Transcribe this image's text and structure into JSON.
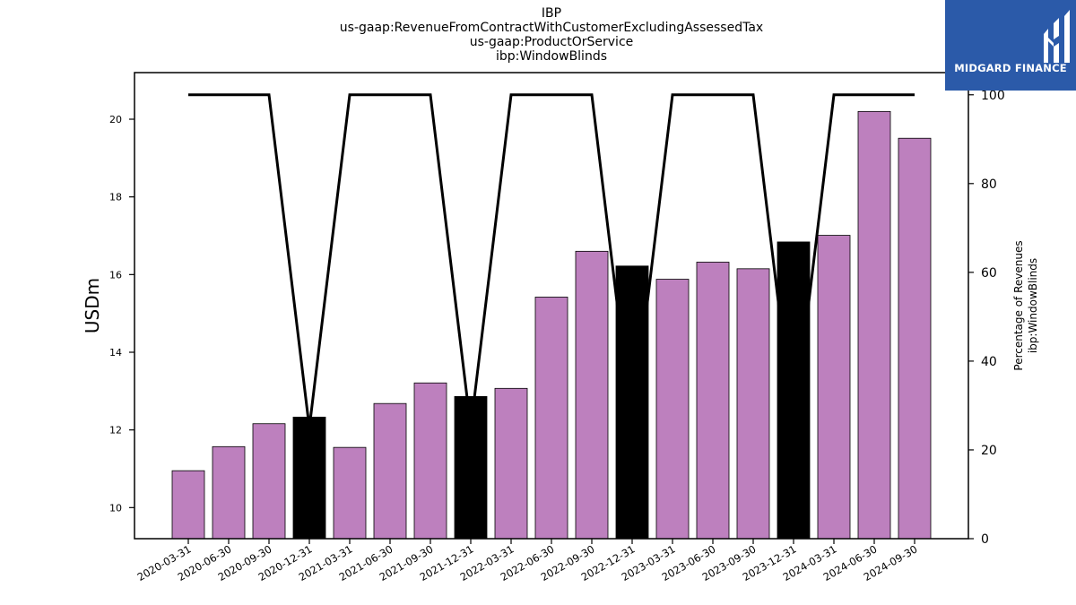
{
  "chart_data": {
    "type": "bar",
    "title": [
      "IBP",
      "us-gaap:RevenueFromContractWithCustomerExcludingAssessedTax",
      "us-gaap:ProductOrService",
      "ibp:WindowBlinds"
    ],
    "ylabel": "USDm",
    "ylabel_right": [
      "Percentage of Revenues",
      "ibp:WindowBlinds"
    ],
    "categories": [
      "2020-03-31",
      "2020-06-30",
      "2020-09-30",
      "2020-12-31",
      "2021-03-31",
      "2021-06-30",
      "2021-09-30",
      "2021-12-31",
      "2022-03-31",
      "2022-06-30",
      "2022-09-30",
      "2022-12-31",
      "2023-03-31",
      "2023-06-30",
      "2023-09-30",
      "2023-12-31",
      "2024-03-31",
      "2024-06-30",
      "2024-09-30"
    ],
    "series": [
      {
        "type": "bar",
        "axis": "left",
        "values": [
          10.95,
          11.57,
          12.16,
          12.33,
          11.55,
          12.68,
          13.21,
          12.86,
          13.07,
          15.42,
          16.6,
          16.22,
          15.88,
          16.32,
          16.15,
          16.84,
          17.01,
          20.2,
          19.51
        ],
        "colors": [
          "#bd80be",
          "#bd80be",
          "#bd80be",
          "#000000",
          "#bd80be",
          "#bd80be",
          "#bd80be",
          "#000000",
          "#bd80be",
          "#bd80be",
          "#bd80be",
          "#000000",
          "#bd80be",
          "#bd80be",
          "#bd80be",
          "#000000",
          "#bd80be",
          "#bd80be",
          "#bd80be"
        ]
      },
      {
        "type": "line",
        "axis": "right",
        "color": "#000000",
        "values": [
          100,
          100,
          100,
          25,
          100,
          100,
          100,
          25,
          100,
          100,
          100,
          25,
          100,
          100,
          100,
          25,
          100,
          100,
          100
        ]
      }
    ],
    "ylim": [
      9.2,
      21.2
    ],
    "yticks": [
      10,
      12,
      14,
      16,
      18,
      20
    ],
    "ylim_right": [
      0,
      105
    ],
    "yticks_right": [
      0,
      20,
      40,
      60,
      80,
      100
    ]
  },
  "logo": {
    "text": "MIDGARD FINANCE",
    "background": "#2b5aa9"
  }
}
